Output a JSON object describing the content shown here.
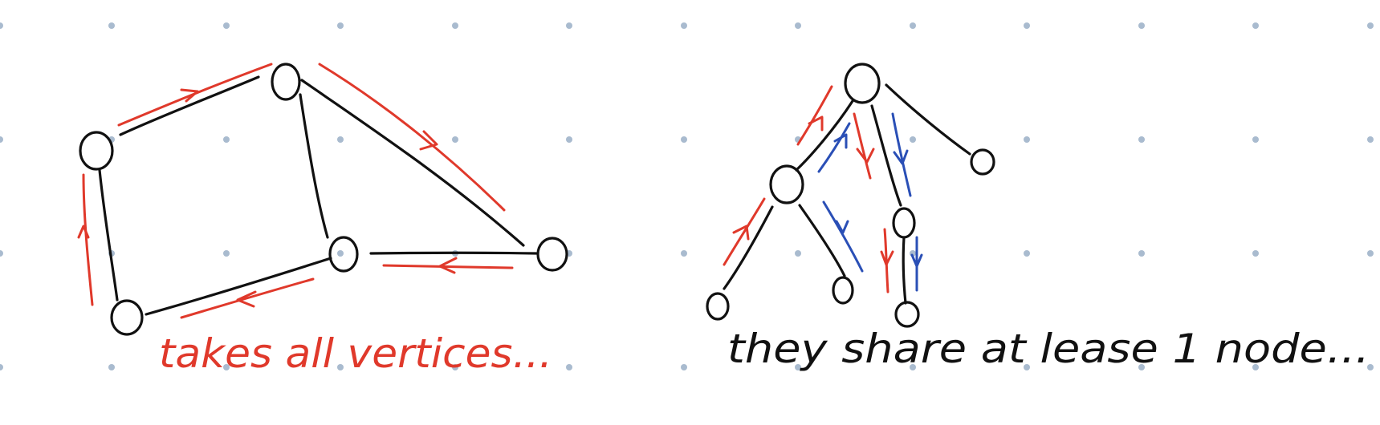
{
  "colors": {
    "background": "#ffffff",
    "grid_dot": "#a9bbcf",
    "ink": "#111111",
    "red": "#e0392b",
    "blue": "#2a4fb6"
  },
  "left_diagram": {
    "caption": "takes all vertices..."
  },
  "right_diagram": {
    "caption": "they share  at lease 1 node..."
  }
}
